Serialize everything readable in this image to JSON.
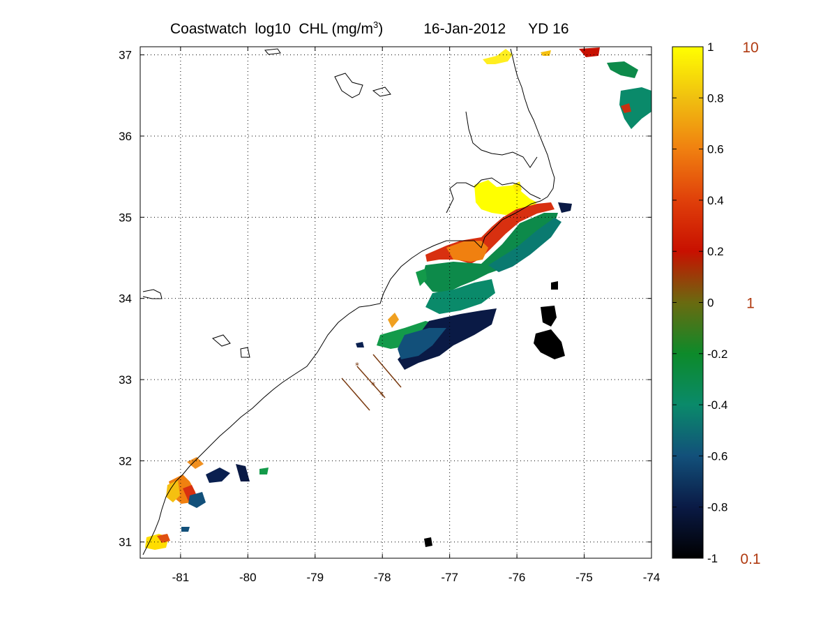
{
  "title": {
    "main": "Coastwatch  log10  CHL (mg/m",
    "superscript": "3",
    "close": ")",
    "date": "16-Jan-2012",
    "yearday": "YD 16"
  },
  "map": {
    "lon_range": [
      -81.6,
      -74
    ],
    "lat_range": [
      30.8,
      37.1
    ],
    "x_ticks": [
      "-81",
      "-80",
      "-79",
      "-78",
      "-77",
      "-76",
      "-75",
      "-74"
    ],
    "x_tick_values": [
      -81,
      -80,
      -79,
      -78,
      -77,
      -76,
      -75,
      -74
    ],
    "y_ticks": [
      "31",
      "32",
      "33",
      "34",
      "35",
      "36",
      "37"
    ],
    "y_tick_values": [
      31,
      32,
      33,
      34,
      35,
      36,
      37
    ],
    "grid": "dotted",
    "coastline_color": "#000000",
    "transect_color": "#7a3a10"
  },
  "colorbar": {
    "range": [
      -1,
      1
    ],
    "tick_labels": [
      "1",
      "0.8",
      "0.6",
      "0.4",
      "0.2",
      "0",
      "-0.2",
      "-0.4",
      "-0.6",
      "-0.8",
      "-1"
    ],
    "tick_values": [
      1,
      0.8,
      0.6,
      0.4,
      0.2,
      0,
      -0.2,
      -0.4,
      -0.6,
      -0.8,
      -1
    ],
    "right_labels": [
      "10",
      "1",
      "0.1"
    ],
    "right_label_values": [
      1,
      0,
      -1
    ],
    "right_label_color": "#b03a10",
    "colors": [
      "#000000",
      "#0a1a45",
      "#12507a",
      "#0a8a6a",
      "#0d8a2a",
      "#6a6a10",
      "#c81000",
      "#e0400a",
      "#f08010",
      "#f0c010",
      "#ffff00"
    ]
  },
  "chart_data": {
    "type": "heatmap",
    "title": "Coastwatch  log10  CHL (mg/m3)        16-Jan-2012     YD 16",
    "xlabel": "",
    "ylabel": "",
    "xlim": [
      -81.6,
      -74
    ],
    "ylim": [
      30.8,
      37.1
    ],
    "colorbar_range": [
      -1,
      1
    ],
    "grid": true,
    "patches": [
      {
        "lon": -76.4,
        "lat": 35.2,
        "value": 1.0
      },
      {
        "lon": -75.9,
        "lat": 35.5,
        "value": 1.0
      },
      {
        "lon": -76.3,
        "lat": 36.95,
        "value": 0.9
      },
      {
        "lon": -75.95,
        "lat": 34.9,
        "value": 0.3
      },
      {
        "lon": -76.5,
        "lat": 34.65,
        "value": 0.2
      },
      {
        "lon": -77.0,
        "lat": 34.5,
        "value": 0.4
      },
      {
        "lon": -75.7,
        "lat": 34.6,
        "value": -0.4
      },
      {
        "lon": -76.7,
        "lat": 34.2,
        "value": -0.4
      },
      {
        "lon": -77.2,
        "lat": 33.95,
        "value": -0.3
      },
      {
        "lon": -76.4,
        "lat": 33.65,
        "value": -0.75
      },
      {
        "lon": -77.0,
        "lat": 33.5,
        "value": -0.6
      },
      {
        "lon": -77.5,
        "lat": 33.3,
        "value": -0.6
      },
      {
        "lon": -77.9,
        "lat": 33.5,
        "value": -0.2
      },
      {
        "lon": -75.6,
        "lat": 33.8,
        "value": -0.95
      },
      {
        "lon": -75.5,
        "lat": 33.5,
        "value": -0.95
      },
      {
        "lon": -74.3,
        "lat": 36.4,
        "value": -0.3
      },
      {
        "lon": -74.5,
        "lat": 36.8,
        "value": -0.3
      },
      {
        "lon": -74.9,
        "lat": 37.05,
        "value": 0.3
      },
      {
        "lon": -80.9,
        "lat": 31.65,
        "value": 0.6
      },
      {
        "lon": -80.8,
        "lat": 31.85,
        "value": 0.7
      },
      {
        "lon": -81.15,
        "lat": 31.05,
        "value": 0.8
      },
      {
        "lon": -80.4,
        "lat": 31.85,
        "value": -0.7
      },
      {
        "lon": -79.9,
        "lat": 31.85,
        "value": -0.6
      },
      {
        "lon": -80.6,
        "lat": 31.55,
        "value": -0.5
      }
    ]
  }
}
